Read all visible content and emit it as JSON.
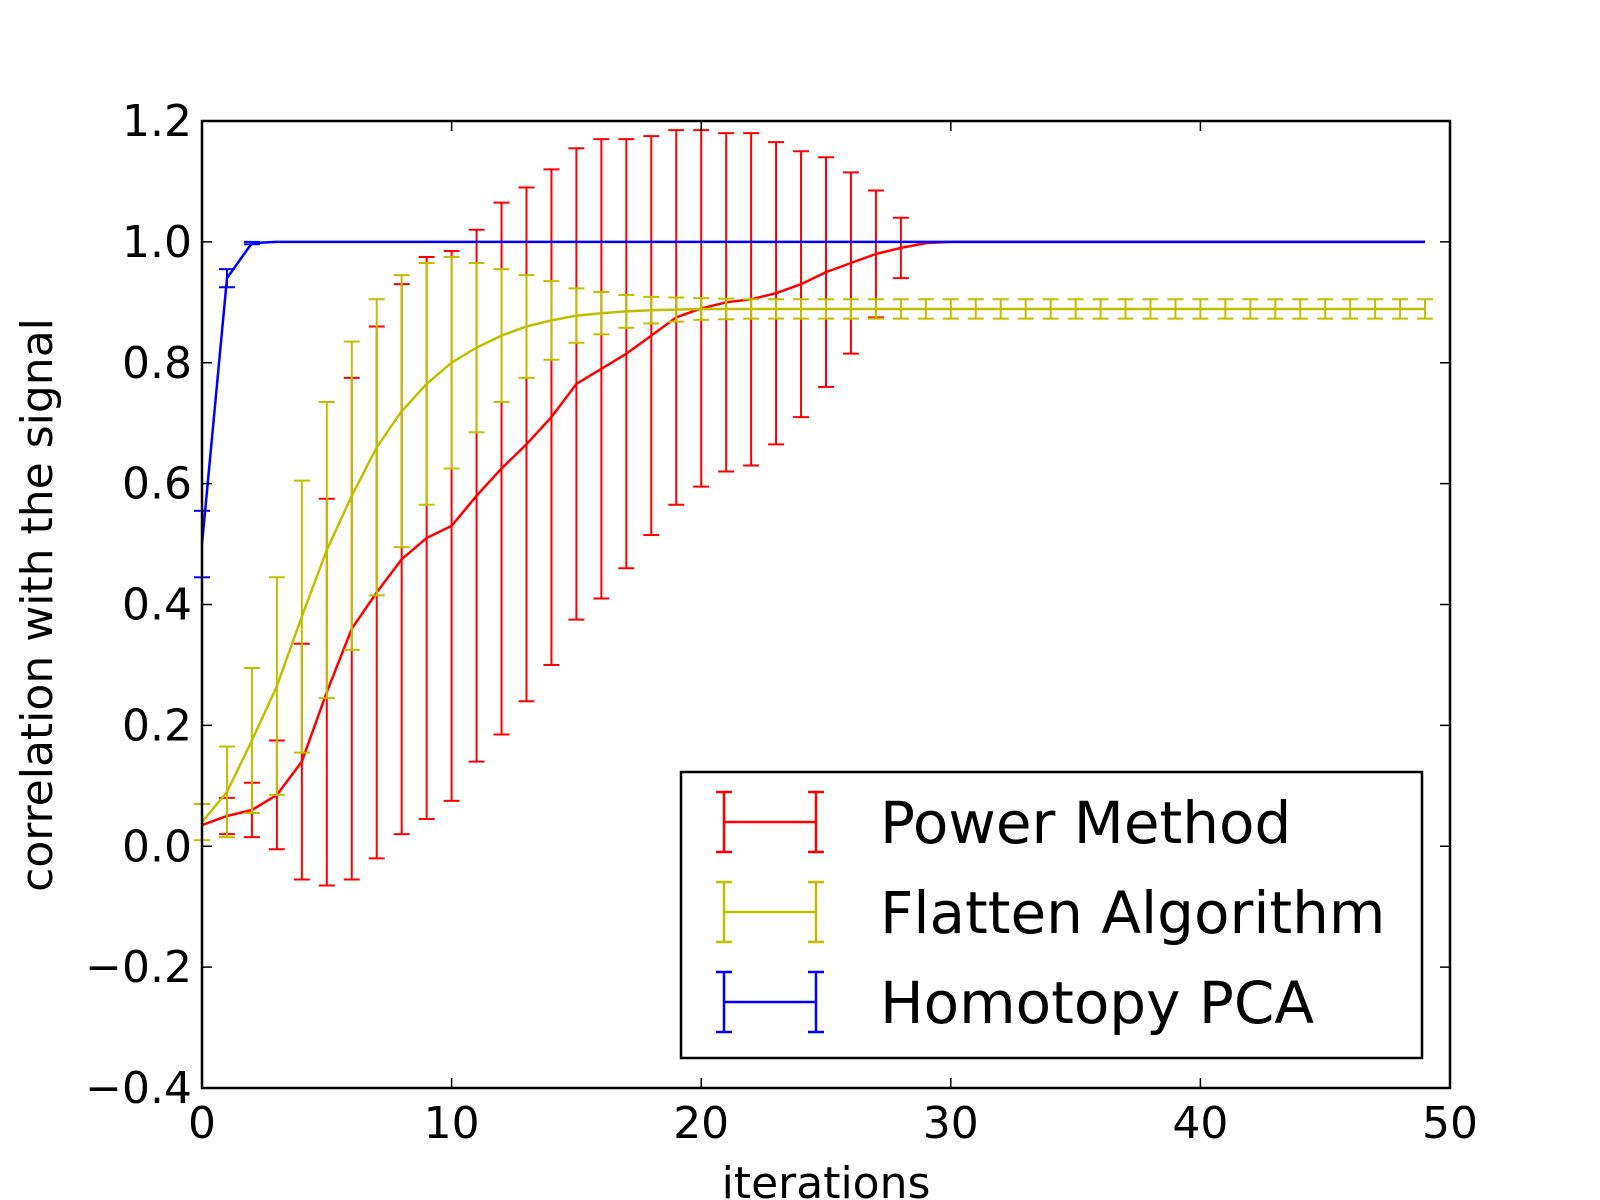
{
  "chart_data": {
    "type": "line",
    "title": "",
    "xlabel": "iterations",
    "ylabel": "correlation with the signal",
    "xlim": [
      0,
      50
    ],
    "ylim": [
      -0.4,
      1.2
    ],
    "x_ticks": [
      0,
      10,
      20,
      30,
      40,
      50
    ],
    "x_tick_labels": [
      "0",
      "10",
      "20",
      "30",
      "40",
      "50"
    ],
    "y_ticks": [
      -0.4,
      -0.2,
      0.0,
      0.2,
      0.4,
      0.6,
      0.8,
      1.0,
      1.2
    ],
    "y_tick_labels": [
      "−0.4",
      "−0.2",
      "0.0",
      "0.2",
      "0.4",
      "0.6",
      "0.8",
      "1.0",
      "1.2"
    ],
    "grid": false,
    "legend_position": "bottom-right",
    "error_bars": true,
    "x": [
      0,
      1,
      2,
      3,
      4,
      5,
      6,
      7,
      8,
      9,
      10,
      11,
      12,
      13,
      14,
      15,
      16,
      17,
      18,
      19,
      20,
      21,
      22,
      23,
      24,
      25,
      26,
      27,
      28,
      29,
      30,
      31,
      32,
      33,
      34,
      35,
      36,
      37,
      38,
      39,
      40,
      41,
      42,
      43,
      44,
      45,
      46,
      47,
      48,
      49
    ],
    "series": [
      {
        "name": "Power Method",
        "color": "#ff0000",
        "values": [
          0.035,
          0.05,
          0.06,
          0.085,
          0.14,
          0.255,
          0.36,
          0.42,
          0.475,
          0.51,
          0.53,
          0.58,
          0.625,
          0.665,
          0.71,
          0.765,
          0.79,
          0.815,
          0.845,
          0.875,
          0.89,
          0.9,
          0.905,
          0.915,
          0.93,
          0.95,
          0.965,
          0.98,
          0.99,
          0.998,
          1.0,
          1.0,
          1.0,
          1.0,
          1.0,
          1.0,
          1.0,
          1.0,
          1.0,
          1.0,
          1.0,
          1.0,
          1.0,
          1.0,
          1.0,
          1.0,
          1.0,
          1.0,
          1.0,
          1.0
        ],
        "errors": [
          0,
          0.03,
          0.045,
          0.09,
          0.195,
          0.32,
          0.415,
          0.44,
          0.455,
          0.465,
          0.455,
          0.44,
          0.44,
          0.425,
          0.41,
          0.39,
          0.38,
          0.355,
          0.33,
          0.31,
          0.295,
          0.28,
          0.275,
          0.25,
          0.22,
          0.19,
          0.15,
          0.105,
          0.05,
          0,
          0,
          0,
          0,
          0,
          0,
          0,
          0,
          0,
          0,
          0,
          0,
          0,
          0,
          0,
          0,
          0,
          0,
          0,
          0,
          0
        ]
      },
      {
        "name": "Flatten Algorithm",
        "color": "#bfbf00",
        "values": [
          0.04,
          0.09,
          0.175,
          0.265,
          0.38,
          0.49,
          0.58,
          0.66,
          0.72,
          0.765,
          0.8,
          0.825,
          0.845,
          0.86,
          0.87,
          0.878,
          0.882,
          0.885,
          0.887,
          0.888,
          0.889,
          0.889,
          0.889,
          0.889,
          0.889,
          0.889,
          0.889,
          0.889,
          0.889,
          0.889,
          0.889,
          0.889,
          0.889,
          0.889,
          0.889,
          0.889,
          0.889,
          0.889,
          0.889,
          0.889,
          0.889,
          0.889,
          0.889,
          0.889,
          0.889,
          0.889,
          0.889,
          0.889,
          0.889,
          0.889
        ],
        "errors": [
          0.03,
          0.075,
          0.12,
          0.18,
          0.225,
          0.245,
          0.255,
          0.245,
          0.225,
          0.2,
          0.175,
          0.14,
          0.11,
          0.085,
          0.065,
          0.045,
          0.035,
          0.027,
          0.022,
          0.02,
          0.018,
          0.017,
          0.016,
          0.016,
          0.016,
          0.016,
          0.016,
          0.016,
          0.016,
          0.016,
          0.016,
          0.016,
          0.016,
          0.016,
          0.016,
          0.016,
          0.016,
          0.016,
          0.016,
          0.016,
          0.016,
          0.016,
          0.016,
          0.016,
          0.016,
          0.016,
          0.016,
          0.016,
          0.016,
          0.016
        ]
      },
      {
        "name": "Homotopy PCA",
        "color": "#0000ff",
        "values": [
          0.5,
          0.94,
          0.998,
          1.0,
          1.0,
          1.0,
          1.0,
          1.0,
          1.0,
          1.0,
          1.0,
          1.0,
          1.0,
          1.0,
          1.0,
          1.0,
          1.0,
          1.0,
          1.0,
          1.0,
          1.0,
          1.0,
          1.0,
          1.0,
          1.0,
          1.0,
          1.0,
          1.0,
          1.0,
          1.0,
          1.0,
          1.0,
          1.0,
          1.0,
          1.0,
          1.0,
          1.0,
          1.0,
          1.0,
          1.0,
          1.0,
          1.0,
          1.0,
          1.0,
          1.0,
          1.0,
          1.0,
          1.0,
          1.0,
          1.0
        ],
        "errors": [
          0.055,
          0.015,
          0.002,
          0,
          0,
          0,
          0,
          0,
          0,
          0,
          0,
          0,
          0,
          0,
          0,
          0,
          0,
          0,
          0,
          0,
          0,
          0,
          0,
          0,
          0,
          0,
          0,
          0,
          0,
          0,
          0,
          0,
          0,
          0,
          0,
          0,
          0,
          0,
          0,
          0,
          0,
          0,
          0,
          0,
          0,
          0,
          0,
          0,
          0,
          0
        ]
      }
    ]
  }
}
